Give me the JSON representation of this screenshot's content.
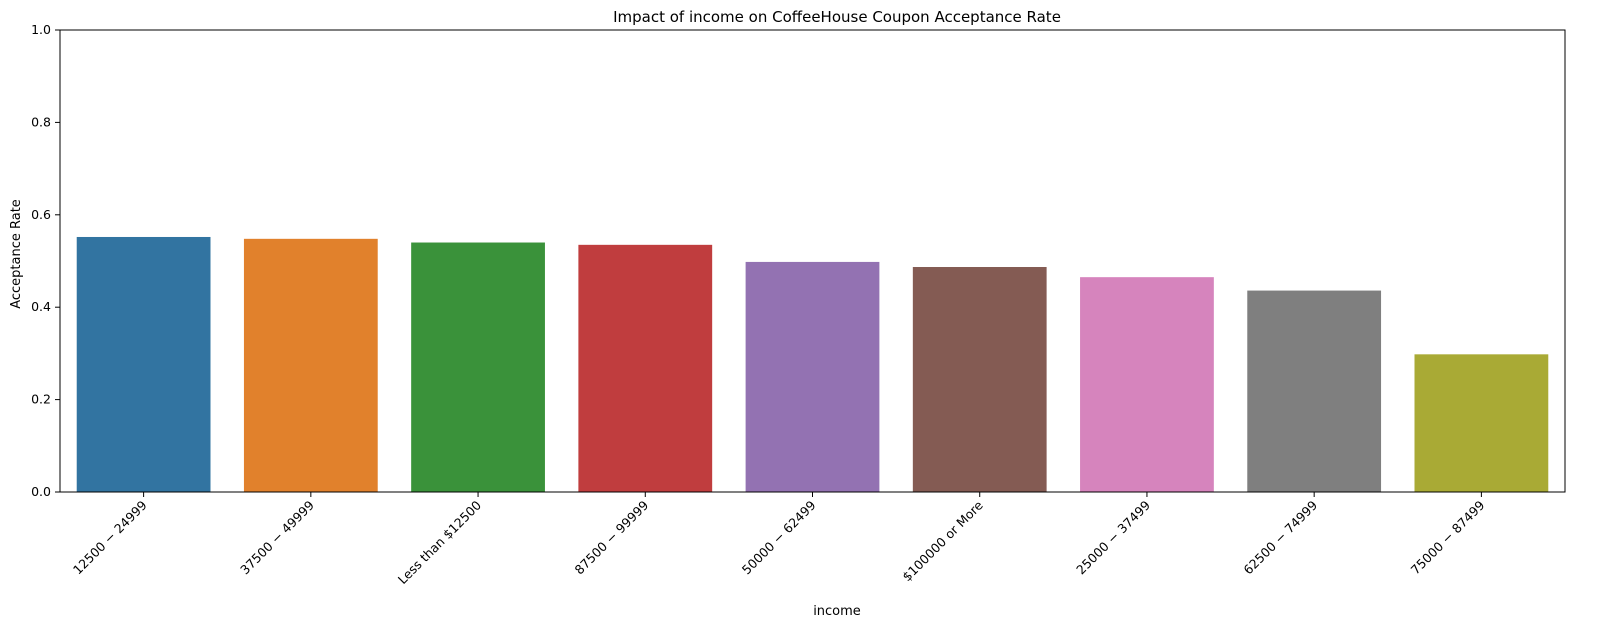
{
  "chart_data": {
    "type": "bar",
    "title": "Impact of income on CoffeeHouse Coupon Acceptance Rate",
    "xlabel": "income",
    "ylabel": "Acceptance Rate",
    "ylim": [
      0,
      1
    ],
    "yticks": [
      "0.0",
      "0.2",
      "0.4",
      "0.6",
      "0.8",
      "1.0"
    ],
    "ytick_values": [
      0,
      0.2,
      0.4,
      0.6,
      0.8,
      1.0
    ],
    "categories": [
      "12500 − 24999",
      "37500 − 49999",
      "Less than $12500",
      "87500 − 99999",
      "50000 − 62499",
      "$100000 or More",
      "25000 − 37499",
      "62500 − 74999",
      "75000 − 87499"
    ],
    "values": [
      0.552,
      0.548,
      0.54,
      0.535,
      0.498,
      0.487,
      0.465,
      0.436,
      0.298
    ],
    "colors": [
      "#3274a1",
      "#e1812c",
      "#3a923a",
      "#c03d3e",
      "#9372b2",
      "#845b53",
      "#d684bd",
      "#7f7f7f",
      "#a9aa35"
    ],
    "grid": false,
    "legend": "none"
  }
}
